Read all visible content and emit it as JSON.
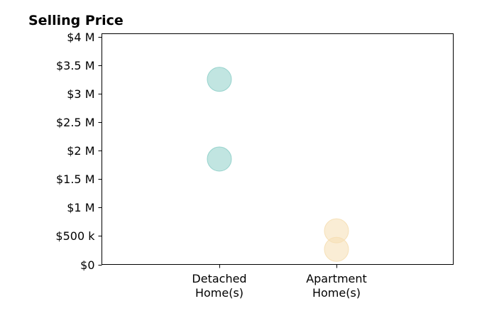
{
  "chart_data": {
    "type": "scatter",
    "title": "Selling Price",
    "xlabel": "",
    "ylabel": "",
    "categories": [
      [
        "Detached",
        "Home(s)"
      ],
      [
        "Apartment",
        "Home(s)"
      ]
    ],
    "ylim": [
      0,
      4050000
    ],
    "yticks": [
      0,
      500000,
      1000000,
      1500000,
      2000000,
      2500000,
      3000000,
      3500000,
      4000000
    ],
    "ytick_labels": [
      "$0",
      "$500 k",
      "$1 M",
      "$1.5 M",
      "$2 M",
      "$2.5 M",
      "$3 M",
      "$3.5 M",
      "$4 M"
    ],
    "grid": false,
    "legend": "none",
    "series": [
      {
        "category": 0,
        "color": "#8ecfc9",
        "values": [
          3250000,
          1850000
        ]
      },
      {
        "category": 1,
        "color": "#f5deb3",
        "values": [
          590000,
          265000
        ]
      }
    ]
  }
}
